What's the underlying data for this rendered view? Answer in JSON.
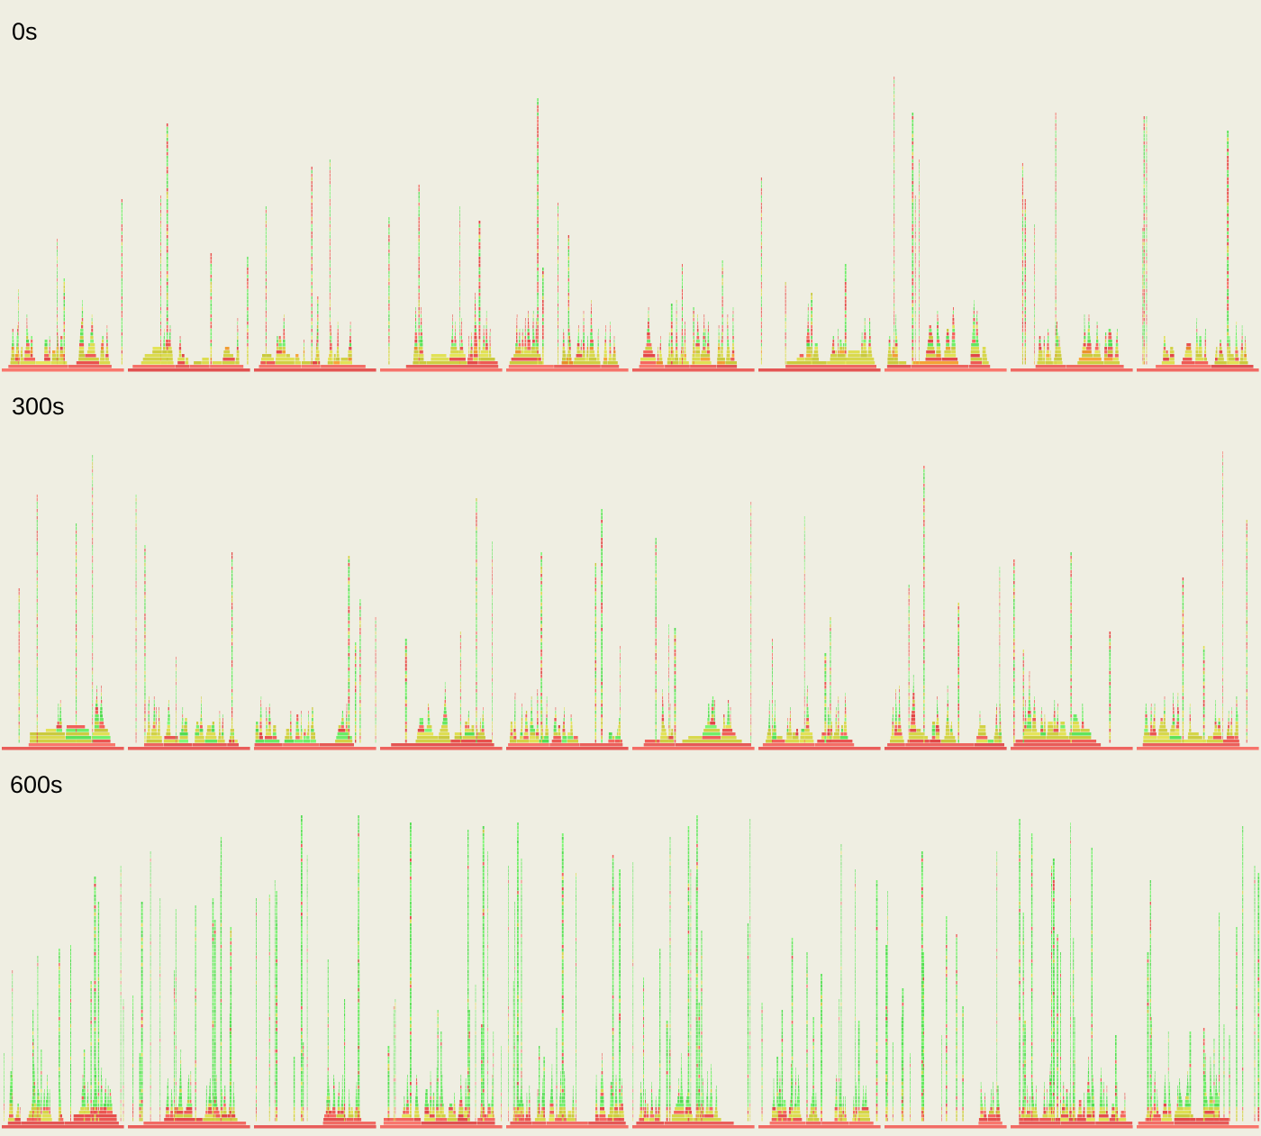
{
  "rows": [
    {
      "label": "0s"
    },
    {
      "label": "300s"
    },
    {
      "label": "600s"
    }
  ]
}
